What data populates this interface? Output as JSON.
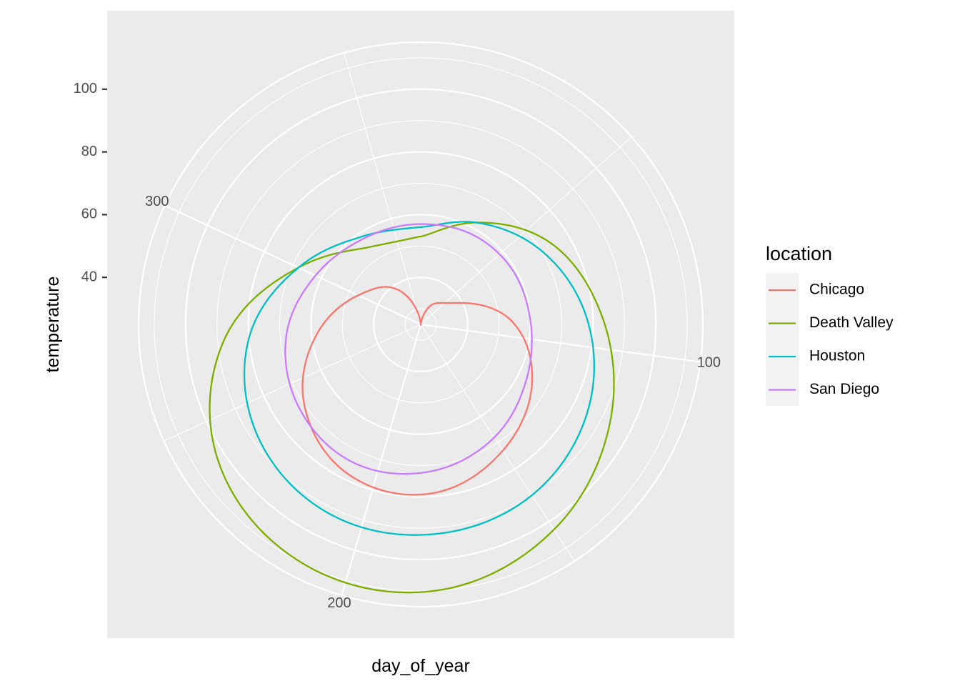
{
  "chart_data": {
    "type": "line",
    "coord": "polar",
    "xlabel": "day_of_year",
    "ylabel": "temperature",
    "theta_ticks": [
      100,
      200,
      300
    ],
    "theta_labels": [
      "100",
      "200",
      "300"
    ],
    "r_ticks": [
      40,
      60,
      80,
      100
    ],
    "r_labels": [
      "40",
      "60",
      "80",
      "100"
    ],
    "r_lim": [
      25,
      115
    ],
    "theta_lim": [
      1,
      366
    ],
    "grid": true,
    "legend": {
      "title": "location",
      "placement": "right"
    },
    "x": [
      1,
      30,
      60,
      90,
      120,
      150,
      180,
      210,
      240,
      270,
      300,
      330,
      365
    ],
    "series": [
      {
        "name": "Chicago",
        "color": "#F8766D",
        "values": [
          25,
          32,
          38,
          54,
          65,
          73,
          79,
          78,
          70,
          58,
          47,
          39,
          25
        ]
      },
      {
        "name": "Death Valley",
        "color": "#7CAE00",
        "values": [
          53,
          62,
          74,
          83,
          93,
          103,
          110,
          110,
          103,
          88,
          68,
          55,
          53
        ]
      },
      {
        "name": "Houston",
        "color": "#00BFC4",
        "values": [
          56,
          62,
          70,
          78,
          85,
          90,
          92,
          92,
          88,
          80,
          68,
          59,
          56
        ]
      },
      {
        "name": "San Diego",
        "color": "#C77CFF",
        "values": [
          57,
          58,
          59,
          60,
          63,
          68,
          72,
          74,
          72,
          68,
          62,
          58,
          57
        ]
      }
    ]
  }
}
